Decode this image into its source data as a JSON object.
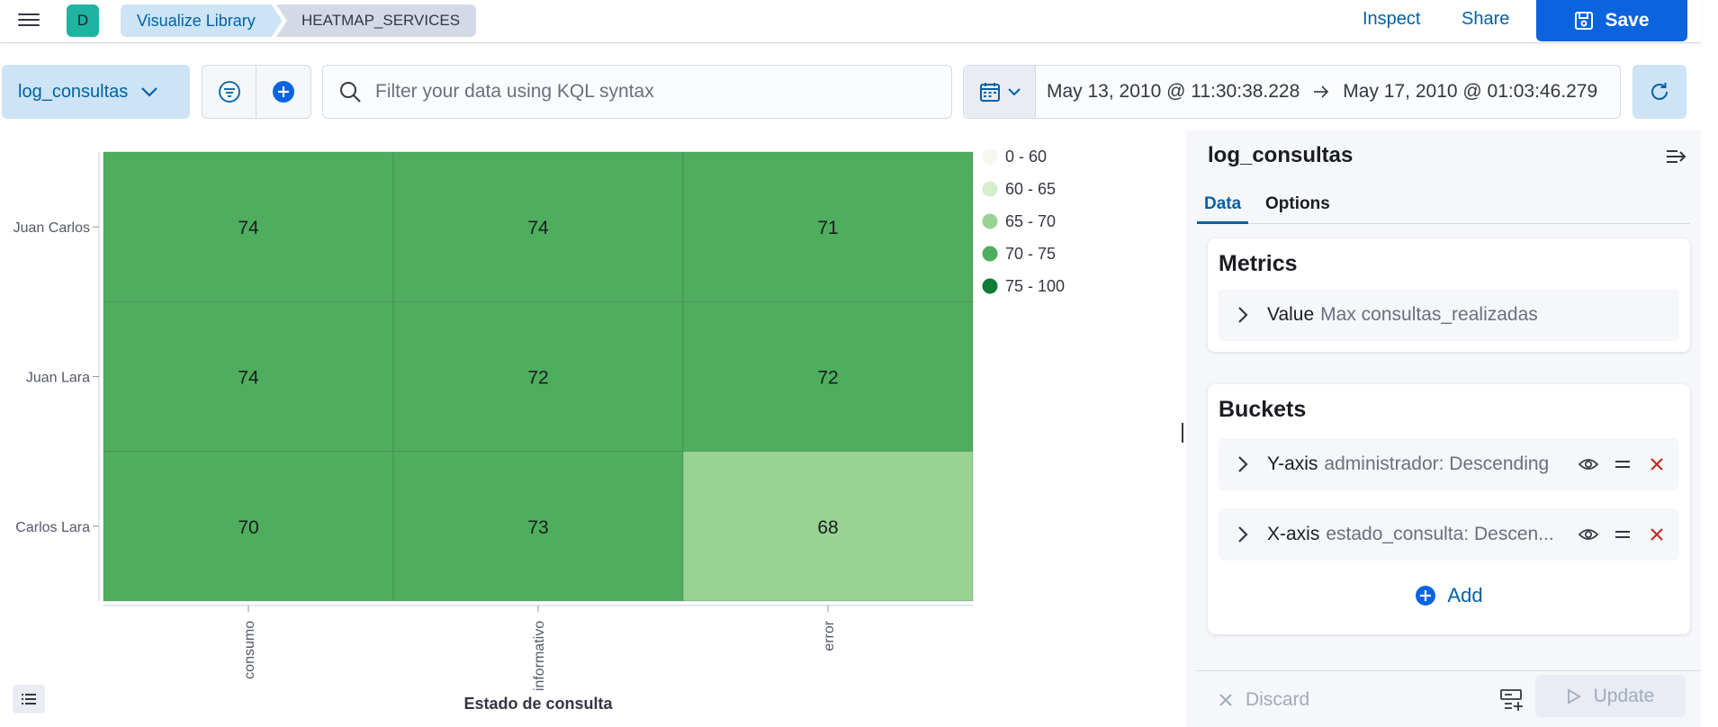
{
  "header": {
    "menu_icon": "hamburger-menu-icon",
    "space_avatar": "D",
    "breadcrumbs": [
      "Visualize Library",
      "HEATMAP_SERVICES"
    ],
    "inspect_label": "Inspect",
    "share_label": "Share",
    "save_label": "Save"
  },
  "query_bar": {
    "index_pattern": "log_consultas",
    "search_placeholder": "Filter your data using KQL syntax",
    "date_start": "May 13, 2010 @ 11:30:38.228",
    "date_end": "May 17, 2010 @ 01:03:46.279"
  },
  "chart_data": {
    "type": "heatmap",
    "x_categories": [
      "consumo",
      "informativo",
      "error"
    ],
    "y_categories": [
      "Juan Carlos",
      "Juan Lara",
      "Carlos Lara"
    ],
    "values": [
      [
        74,
        74,
        71
      ],
      [
        74,
        72,
        72
      ],
      [
        70,
        73,
        68
      ]
    ],
    "xlabel": "Estado de consulta",
    "ylabel": "",
    "legend_position": "right",
    "legend": [
      {
        "label": "0 - 60",
        "color": "#f3f9f0"
      },
      {
        "label": "60 - 65",
        "color": "#d5eecc"
      },
      {
        "label": "65 - 70",
        "color": "#98d393"
      },
      {
        "label": "70 - 75",
        "color": "#4fae5e"
      },
      {
        "label": "75 - 100",
        "color": "#117a35"
      }
    ]
  },
  "sidebar": {
    "title": "log_consultas",
    "tabs": [
      "Data",
      "Options"
    ],
    "metrics": {
      "title": "Metrics",
      "items": [
        {
          "type": "Value",
          "desc": "Max consultas_realizadas"
        }
      ]
    },
    "buckets": {
      "title": "Buckets",
      "items": [
        {
          "type": "Y-axis",
          "desc": "administrador: Descending"
        },
        {
          "type": "X-axis",
          "desc": "estado_consulta: Descen..."
        }
      ],
      "add_label": "Add"
    },
    "discard_label": "Discard",
    "update_label": "Update"
  },
  "colors": {
    "accent": "#0b64dd",
    "link": "#0061a6",
    "danger": "#bd271e"
  }
}
